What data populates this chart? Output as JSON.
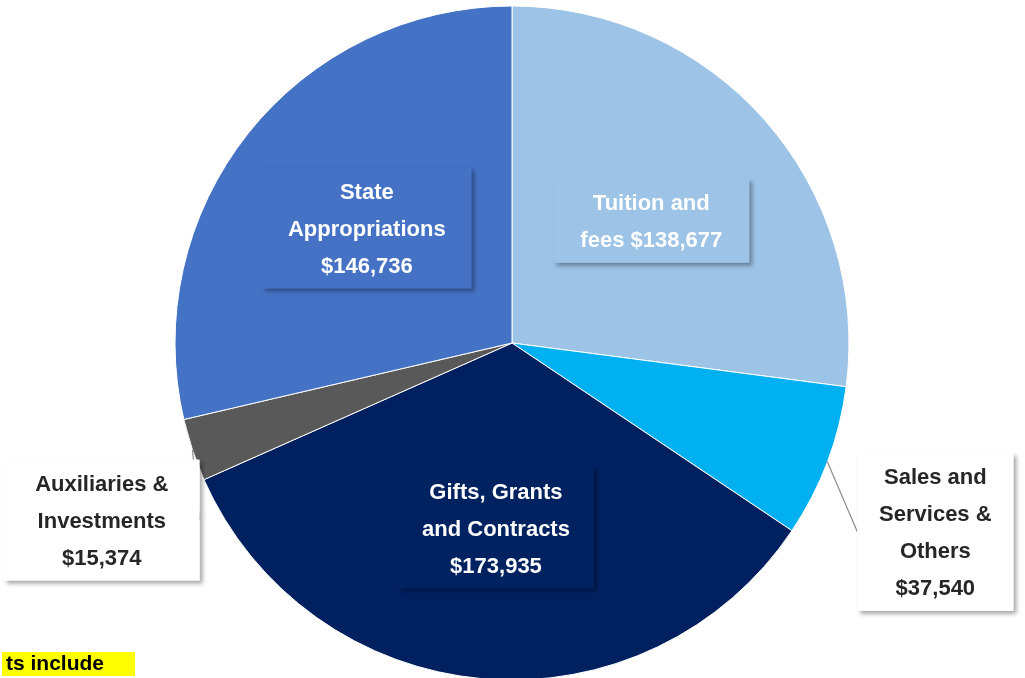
{
  "chart_data": {
    "type": "pie",
    "categories": [
      "Tuition and fees",
      "Sales and Services & Others",
      "Gifts, Grants and Contracts",
      "Auxiliaries & Investments",
      "State Appropriations"
    ],
    "values": [
      138677,
      37540,
      173935,
      15374,
      146736
    ],
    "value_labels": [
      "$138,677",
      "$37,540",
      "$173,935",
      "$15,374",
      "$146,736"
    ],
    "colors": [
      "#9dc3e6",
      "#00b0f0",
      "#002060",
      "#595959",
      "#4472c4"
    ],
    "annotations": [
      "ts include"
    ]
  }
}
